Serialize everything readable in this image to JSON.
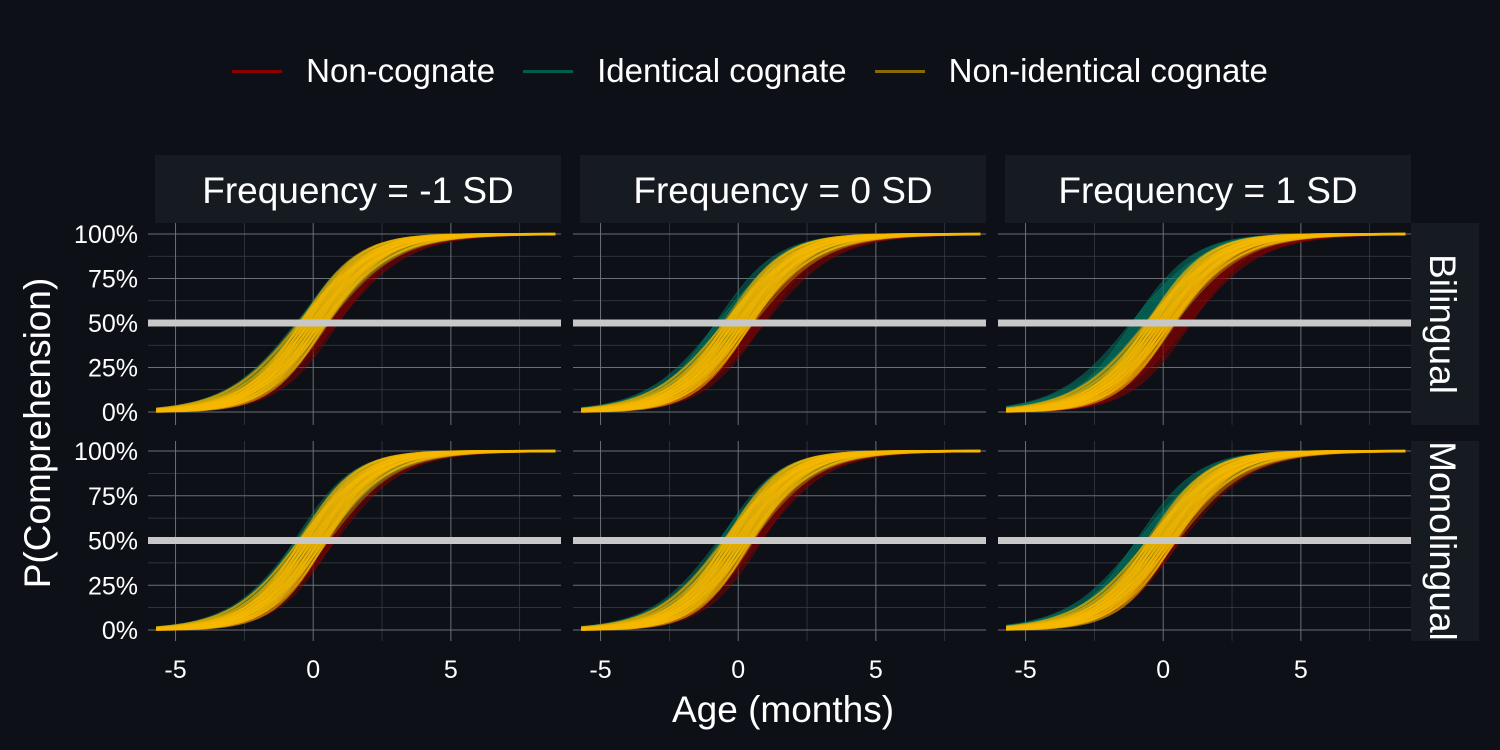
{
  "chart_data": {
    "type": "line",
    "ylabel": "P(Comprehension)",
    "xlabel": "Age (months)",
    "x_ticks": [
      "-5",
      "0",
      "5"
    ],
    "y_ticks": [
      "0%",
      "25%",
      "50%",
      "75%",
      "100%"
    ],
    "xlim": [
      -6.0,
      9.0
    ],
    "ylim": [
      0,
      1
    ],
    "reference_line": 0.5,
    "legend_position": "top",
    "columns": [
      "Frequency = -1 SD",
      "Frequency = 0 SD",
      "Frequency = 1 SD"
    ],
    "rows": [
      "Bilingual",
      "Monolingual"
    ],
    "series": [
      {
        "name": "Non-cognate",
        "color": "#8b0000"
      },
      {
        "name": "Identical cognate",
        "color": "#005c4b"
      },
      {
        "name": "Non-identical cognate",
        "color": "#8a6a00"
      }
    ],
    "curves": [
      {
        "row": "Bilingual",
        "column": "Frequency = -1 SD",
        "inflection_age": [
          0.35,
          -0.05,
          0.0
        ],
        "slope": 0.9
      },
      {
        "row": "Bilingual",
        "column": "Frequency = 0 SD",
        "inflection_age": [
          0.4,
          -0.25,
          0.0
        ],
        "slope": 0.9
      },
      {
        "row": "Bilingual",
        "column": "Frequency = 1 SD",
        "inflection_age": [
          0.45,
          -0.6,
          -0.1
        ],
        "slope": 0.9
      },
      {
        "row": "Monolingual",
        "column": "Frequency = -1 SD",
        "inflection_age": [
          0.25,
          -0.1,
          0.0
        ],
        "slope": 0.95
      },
      {
        "row": "Monolingual",
        "column": "Frequency = 0 SD",
        "inflection_age": [
          0.3,
          -0.15,
          0.0
        ],
        "slope": 0.95
      },
      {
        "row": "Monolingual",
        "column": "Frequency = 1 SD",
        "inflection_age": [
          0.1,
          -0.4,
          -0.05
        ],
        "slope": 0.9
      }
    ]
  }
}
